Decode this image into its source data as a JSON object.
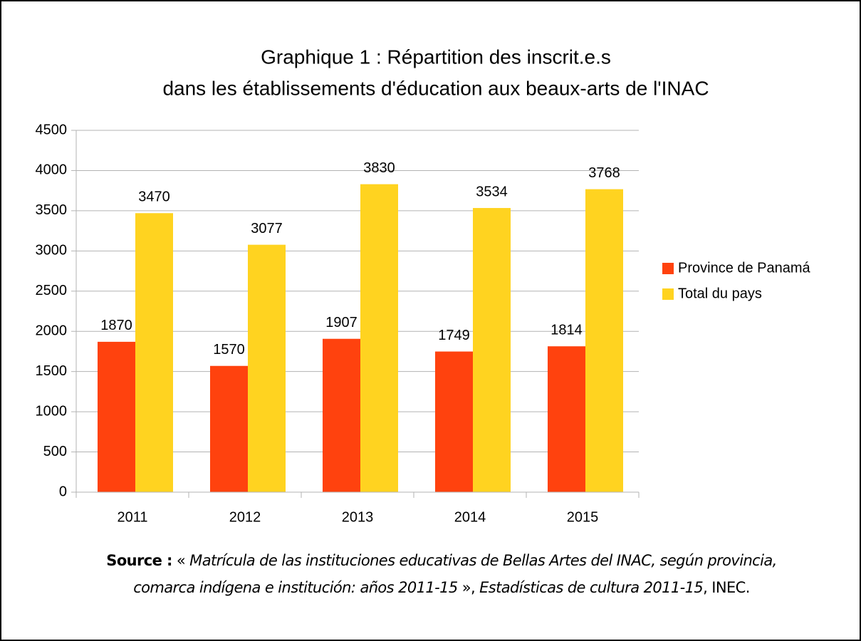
{
  "chart_data": {
    "type": "bar",
    "title": [
      "Graphique 1 : Répartition des inscrit.e.s",
      "dans les établissements d'éducation aux beaux-arts de l'INAC"
    ],
    "categories": [
      "2011",
      "2012",
      "2013",
      "2014",
      "2015"
    ],
    "series": [
      {
        "name": "Province de Panamá",
        "color": "#ff420e",
        "values": [
          1870,
          1570,
          1907,
          1749,
          1814
        ]
      },
      {
        "name": "Total du pays",
        "color": "#ffd320",
        "values": [
          3470,
          3077,
          3830,
          3534,
          3768
        ]
      }
    ],
    "ylim": [
      0,
      4500
    ],
    "yticks": [
      0,
      500,
      1000,
      1500,
      2000,
      2500,
      3000,
      3500,
      4000,
      4500
    ],
    "grid": true,
    "legend": "right",
    "data_labels": true,
    "source": [
      "Source :",
      "«",
      "Matrícula de las instituciones educativas de Bellas Artes del INAC, según provincia,",
      "comarca indígena e institución: años 2011-15",
      "»,",
      "Estadísticas de cultura 2011-15",
      ", INEC."
    ]
  }
}
